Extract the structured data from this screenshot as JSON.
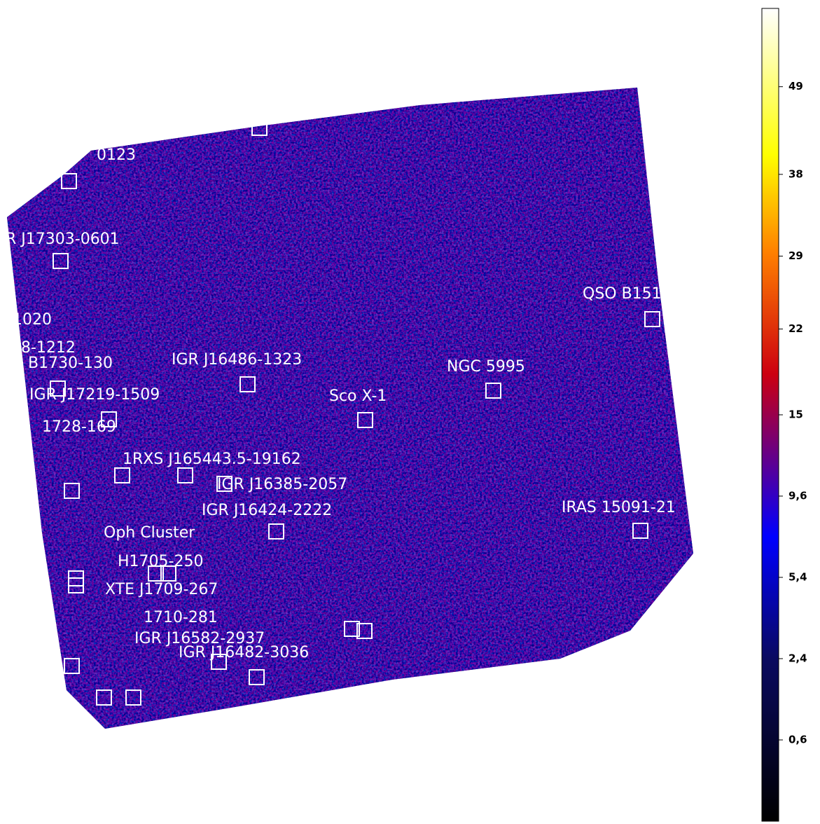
{
  "sky_map": {
    "sources": [
      {
        "label": "0123"
      },
      {
        "label": "R J17303-0601"
      },
      {
        "label": "1020"
      },
      {
        "label": "8-1212"
      },
      {
        "label": "B1730-130"
      },
      {
        "label": "IGR J16486-1323"
      },
      {
        "label": "NGC 5995"
      },
      {
        "label": "QSO B151"
      },
      {
        "label": "IGR J17219-1509"
      },
      {
        "label": "Sco X-1"
      },
      {
        "label": "1728-169"
      },
      {
        "label": "1RXS J165443.5-19162"
      },
      {
        "label": "IGR J16385-2057"
      },
      {
        "label": "IGR J16424-2222"
      },
      {
        "label": "IRAS 15091-21"
      },
      {
        "label": "Oph Cluster"
      },
      {
        "label": "H1705-250"
      },
      {
        "label": "XTE J1709-267"
      },
      {
        "label": "1710-281"
      },
      {
        "label": "IGR J16582-2937"
      },
      {
        "label": "IGR J16482-3036"
      }
    ],
    "colorbar": {
      "scale": "sqrt",
      "lim": [
        0,
        60
      ],
      "ticks": [
        49,
        38,
        29,
        22,
        15,
        {
          "value": 9.6,
          "label": "9,6"
        },
        {
          "value": 5.4,
          "label": "5,4"
        },
        {
          "value": 2.4,
          "label": "2,4"
        },
        {
          "value": 0.6,
          "label": "0,6"
        }
      ]
    }
  }
}
